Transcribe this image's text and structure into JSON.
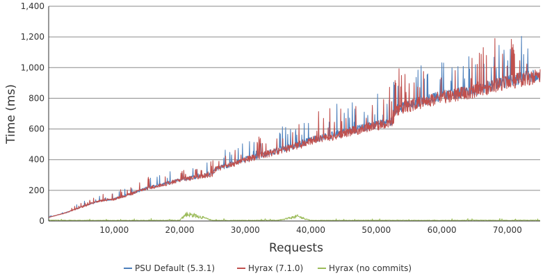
{
  "chart_data": {
    "type": "line",
    "title": "",
    "xlabel": "Requests",
    "ylabel": "Time (ms)",
    "xlim": [
      0,
      75000
    ],
    "ylim": [
      0,
      1400
    ],
    "x_ticks": [
      10000,
      20000,
      30000,
      40000,
      50000,
      60000,
      70000
    ],
    "x_tick_labels": [
      "10,000",
      "20,000",
      "30,000",
      "40,000",
      "50,000",
      "60,000",
      "70,000"
    ],
    "y_ticks": [
      0,
      200,
      400,
      600,
      800,
      1000,
      1200,
      1400
    ],
    "y_tick_labels": [
      "0",
      "200",
      "400",
      "600",
      "800",
      "1,000",
      "1,200",
      "1,400"
    ],
    "grid": true,
    "legend_position": "bottom-center",
    "series": [
      {
        "name": "PSU Default (5.3.1)",
        "color": "#4a7ebb",
        "x": [
          0,
          2500,
          5000,
          7500,
          10000,
          12500,
          15000,
          17500,
          20000,
          22500,
          25000,
          25500,
          27500,
          30000,
          32500,
          35000,
          37500,
          40000,
          42500,
          45000,
          47500,
          50000,
          52500,
          53000,
          55000,
          57500,
          60000,
          62500,
          65000,
          67500,
          70000,
          72500,
          75000
        ],
        "values": [
          25,
          55,
          95,
          135,
          150,
          185,
          225,
          250,
          280,
          300,
          320,
          355,
          380,
          420,
          450,
          480,
          510,
          550,
          575,
          600,
          630,
          655,
          680,
          760,
          790,
          820,
          850,
          870,
          890,
          920,
          950,
          975,
          1000
        ]
      },
      {
        "name": "Hyrax (7.1.0)",
        "color": "#c0504d",
        "x": [
          0,
          2500,
          5000,
          7500,
          10000,
          12500,
          15000,
          17500,
          20000,
          22500,
          25000,
          25500,
          27500,
          30000,
          32500,
          35000,
          37500,
          40000,
          42500,
          45000,
          47500,
          50000,
          52500,
          53000,
          55000,
          57500,
          60000,
          62500,
          65000,
          67500,
          70000,
          72500,
          75000
        ],
        "values": [
          25,
          55,
          95,
          135,
          150,
          185,
          225,
          250,
          280,
          300,
          320,
          355,
          380,
          420,
          450,
          480,
          510,
          550,
          575,
          600,
          630,
          655,
          680,
          760,
          790,
          820,
          850,
          870,
          890,
          920,
          950,
          975,
          1000
        ]
      },
      {
        "name": "Hyrax (no commits)",
        "color": "#9bbb59",
        "x": [
          0,
          5000,
          10000,
          15000,
          20000,
          21000,
          22500,
          25000,
          30000,
          35000,
          38000,
          40000,
          45000,
          50000,
          55000,
          60000,
          65000,
          70000,
          75000
        ],
        "values": [
          5,
          4,
          4,
          4,
          5,
          45,
          35,
          4,
          4,
          5,
          30,
          4,
          4,
          5,
          4,
          4,
          5,
          4,
          5
        ]
      }
    ]
  }
}
